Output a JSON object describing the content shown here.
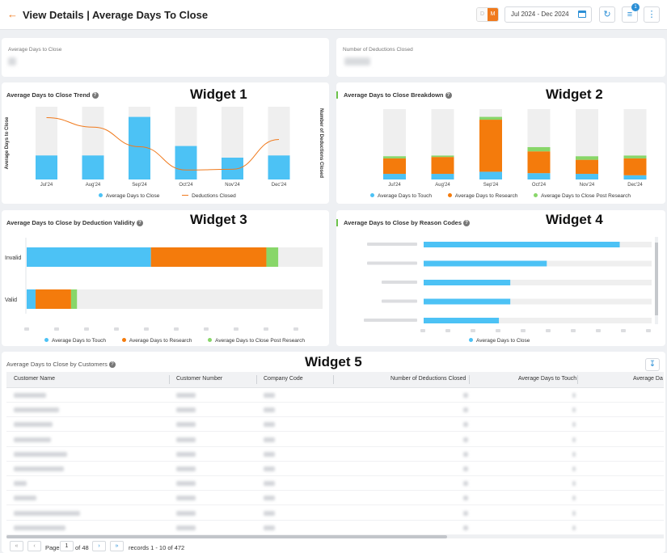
{
  "header": {
    "title": "View Details | Average Days To Close",
    "view_toggle": [
      "D",
      "M"
    ],
    "date_range": "Jul 2024 - Dec 2024",
    "filter_count": "1"
  },
  "kpis": [
    {
      "label": "Average Days to Close"
    },
    {
      "label": "Number of Deductions Closed"
    }
  ],
  "widget1": {
    "title": "Average Days to Close Trend",
    "annotation": "Widget 1",
    "ylabel": "Average Days to Close",
    "ylabel_right": "Number of Deductions Closed",
    "legend": [
      "Average Days to Close",
      "Deductions Closed"
    ]
  },
  "widget2": {
    "title": "Average Days to Close Breakdown",
    "annotation": "Widget 2",
    "legend": [
      "Average Days to Touch",
      "Average Days to Research",
      "Average Days to Close Post Research"
    ]
  },
  "widget3": {
    "title": "Average Days to Close by Deduction Validity",
    "annotation": "Widget 3",
    "legend": [
      "Average Days to Touch",
      "Average Days to Research",
      "Average Days to Close Post Research"
    ]
  },
  "widget4": {
    "title": "Average Days to Close by Reason Codes",
    "annotation": "Widget 4",
    "legend": [
      "Average Days to Close"
    ]
  },
  "widget5": {
    "title": "Average Days to Close by Customers",
    "annotation": "Widget 5",
    "columns": [
      "Customer Name",
      "Customer Number",
      "Company Code",
      "Number of Deductions Closed",
      "Average Days to Touch",
      "Average Da"
    ],
    "pager": {
      "page_label": "Page",
      "page": "1",
      "of_label": "of 48",
      "records": "records 1 - 10 of 472"
    }
  },
  "chart_data": [
    {
      "type": "bar",
      "title": "Average Days to Close Trend",
      "categories": [
        "Jul'24",
        "Aug'24",
        "Sep'24",
        "Oct'24",
        "Nov'24",
        "Dec'24"
      ],
      "ylabel": "Average Days to Close",
      "y2label": "Number of Deductions Closed",
      "series": [
        {
          "name": "Average Days to Close",
          "type": "bar",
          "values": [
            0.33,
            0.33,
            0.86,
            0.46,
            0.3,
            0.33
          ]
        },
        {
          "name": "Deductions Closed",
          "type": "line",
          "axis": "right",
          "values": [
            0.85,
            0.72,
            0.45,
            0.13,
            0.14,
            0.55
          ]
        }
      ],
      "note": "values are relative to the axis maximum; tick labels are obscured"
    },
    {
      "type": "bar",
      "stacked": true,
      "title": "Average Days to Close Breakdown",
      "categories": [
        "Jul'24",
        "Aug'24",
        "Sep'24",
        "Oct'24",
        "Nov'24",
        "Dec'24"
      ],
      "series": [
        {
          "name": "Average Days to Touch",
          "values": [
            0.08,
            0.08,
            0.11,
            0.09,
            0.08,
            0.06
          ]
        },
        {
          "name": "Average Days to Research",
          "values": [
            0.22,
            0.24,
            0.74,
            0.31,
            0.2,
            0.24
          ]
        },
        {
          "name": "Average Days to Close Post Research",
          "values": [
            0.03,
            0.02,
            0.04,
            0.06,
            0.05,
            0.04
          ]
        }
      ]
    },
    {
      "type": "bar",
      "orientation": "horizontal",
      "stacked": true,
      "title": "Average Days to Close by Deduction Validity",
      "categories": [
        "Invalid",
        "Valid"
      ],
      "series": [
        {
          "name": "Average Days to Touch",
          "values": [
            0.42,
            0.03
          ]
        },
        {
          "name": "Average Days to Research",
          "values": [
            0.39,
            0.12
          ]
        },
        {
          "name": "Average Days to Close Post Research",
          "values": [
            0.04,
            0.02
          ]
        }
      ]
    },
    {
      "type": "bar",
      "orientation": "horizontal",
      "title": "Average Days to Close by Reason Codes",
      "series": [
        {
          "name": "Average Days to Close",
          "values": [
            0.86,
            0.54,
            0.38,
            0.38,
            0.33
          ]
        }
      ]
    }
  ]
}
